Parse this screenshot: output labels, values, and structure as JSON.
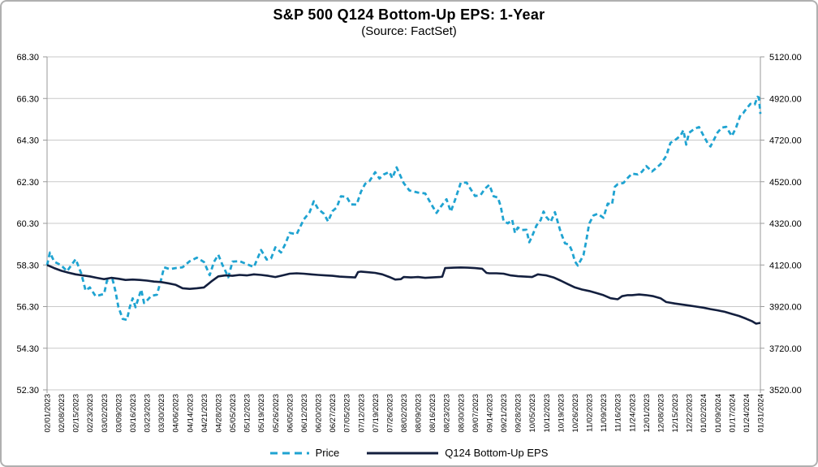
{
  "title": "S&P 500 Q124 Bottom-Up EPS: 1-Year",
  "subtitle": "(Source: FactSet)",
  "legend": [
    {
      "label": "Price",
      "color": "#1fa3d1",
      "style": "dashed"
    },
    {
      "label": "Q124 Bottom-Up EPS",
      "color": "#131f3e",
      "style": "solid"
    }
  ],
  "colors": {
    "price_line": "#1fa3d1",
    "eps_line": "#131f3e",
    "gridline": "#c9c9c9",
    "axis": "#9a9a9a",
    "text": "#000000"
  },
  "chart_data": {
    "type": "line",
    "title": "S&P 500 Q124 Bottom-Up EPS: 1-Year",
    "subtitle": "(Source: FactSet)",
    "grid": true,
    "legend_position": "bottom",
    "left_axis": {
      "min": 52.3,
      "max": 68.3,
      "step": 2.0,
      "ticks": [
        "68.30",
        "66.30",
        "64.30",
        "62.30",
        "60.30",
        "58.30",
        "56.30",
        "54.30",
        "52.30"
      ]
    },
    "right_axis": {
      "min": 3520.0,
      "max": 5120.0,
      "step": 200.0,
      "ticks": [
        "5120.00",
        "4920.00",
        "4720.00",
        "4520.00",
        "4320.00",
        "4120.00",
        "3920.00",
        "3720.00",
        "3520.00"
      ]
    },
    "x_labels": [
      "02/01/2023",
      "02/08/2023",
      "02/15/2023",
      "02/23/2023",
      "03/02/2023",
      "03/09/2023",
      "03/16/2023",
      "03/23/2023",
      "03/30/2023",
      "04/06/2023",
      "04/14/2023",
      "04/21/2023",
      "04/28/2023",
      "05/05/2023",
      "05/12/2023",
      "05/19/2023",
      "05/26/2023",
      "06/05/2023",
      "06/12/2023",
      "06/20/2023",
      "06/27/2023",
      "07/05/2023",
      "07/12/2023",
      "07/19/2023",
      "07/26/2023",
      "08/02/2023",
      "08/09/2023",
      "08/16/2023",
      "08/23/2023",
      "08/30/2023",
      "09/07/2023",
      "09/14/2023",
      "09/21/2023",
      "09/28/2023",
      "10/05/2023",
      "10/12/2023",
      "10/19/2023",
      "10/26/2023",
      "11/02/2023",
      "11/09/2023",
      "11/16/2023",
      "11/24/2023",
      "12/01/2023",
      "12/08/2023",
      "12/15/2023",
      "12/22/2023",
      "01/02/2024",
      "01/09/2024",
      "01/17/2024",
      "01/24/2024",
      "01/31/2024"
    ],
    "series": [
      {
        "name": "Price",
        "axis": "right",
        "color": "#1fa3d1",
        "dash": true,
        "points": [
          [
            0,
            4119
          ],
          [
            0.2,
            4180
          ],
          [
            0.5,
            4136
          ],
          [
            1,
            4118
          ],
          [
            1.4,
            4090
          ],
          [
            2,
            4148
          ],
          [
            2.4,
            4079
          ],
          [
            2.7,
            3997
          ],
          [
            3,
            4012
          ],
          [
            3.4,
            3970
          ],
          [
            4,
            3981
          ],
          [
            4.2,
            4045
          ],
          [
            4.6,
            4048
          ],
          [
            4.8,
            3992
          ],
          [
            5,
            3918
          ],
          [
            5.3,
            3861
          ],
          [
            5.6,
            3856
          ],
          [
            5.8,
            3919
          ],
          [
            6,
            3960
          ],
          [
            6.2,
            3917
          ],
          [
            6.6,
            4002
          ],
          [
            6.8,
            3937
          ],
          [
            7,
            3949
          ],
          [
            7.3,
            3971
          ],
          [
            7.7,
            3977
          ],
          [
            8,
            4051
          ],
          [
            8.2,
            4109
          ],
          [
            8.6,
            4100
          ],
          [
            9,
            4105
          ],
          [
            9.5,
            4109
          ],
          [
            10,
            4138
          ],
          [
            10.5,
            4155
          ],
          [
            11,
            4134
          ],
          [
            11.4,
            4071
          ],
          [
            11.7,
            4135
          ],
          [
            12,
            4169
          ],
          [
            12.3,
            4120
          ],
          [
            12.5,
            4091
          ],
          [
            12.7,
            4061
          ],
          [
            13,
            4136
          ],
          [
            13.5,
            4138
          ],
          [
            14,
            4124
          ],
          [
            14.5,
            4110
          ],
          [
            15,
            4192
          ],
          [
            15.4,
            4146
          ],
          [
            15.7,
            4151
          ],
          [
            16,
            4205
          ],
          [
            16.4,
            4180
          ],
          [
            16.7,
            4221
          ],
          [
            17,
            4274
          ],
          [
            17.5,
            4268
          ],
          [
            18,
            4339
          ],
          [
            18.4,
            4373
          ],
          [
            18.7,
            4426
          ],
          [
            19,
            4389
          ],
          [
            19.4,
            4366
          ],
          [
            19.7,
            4329
          ],
          [
            20,
            4378
          ],
          [
            20.3,
            4396
          ],
          [
            20.6,
            4450
          ],
          [
            21,
            4447
          ],
          [
            21.3,
            4411
          ],
          [
            21.7,
            4410
          ],
          [
            22,
            4472
          ],
          [
            22.3,
            4510
          ],
          [
            22.6,
            4523
          ],
          [
            23,
            4566
          ],
          [
            23.3,
            4535
          ],
          [
            23.6,
            4555
          ],
          [
            24,
            4567
          ],
          [
            24.2,
            4537
          ],
          [
            24.5,
            4589
          ],
          [
            25,
            4513
          ],
          [
            25.4,
            4478
          ],
          [
            26,
            4468
          ],
          [
            26.5,
            4464
          ],
          [
            27,
            4404
          ],
          [
            27.3,
            4370
          ],
          [
            27.6,
            4400
          ],
          [
            28,
            4436
          ],
          [
            28.3,
            4376
          ],
          [
            28.6,
            4433
          ],
          [
            29,
            4515
          ],
          [
            29.4,
            4516
          ],
          [
            30,
            4451
          ],
          [
            30.4,
            4457
          ],
          [
            30.7,
            4487
          ],
          [
            31,
            4505
          ],
          [
            31.3,
            4450
          ],
          [
            31.6,
            4444
          ],
          [
            31.8,
            4402
          ],
          [
            32,
            4330
          ],
          [
            32.3,
            4320
          ],
          [
            32.6,
            4337
          ],
          [
            32.8,
            4274
          ],
          [
            33,
            4300
          ],
          [
            33.3,
            4288
          ],
          [
            33.6,
            4289
          ],
          [
            33.8,
            4229
          ],
          [
            34,
            4258
          ],
          [
            34.3,
            4309
          ],
          [
            34.6,
            4336
          ],
          [
            34.8,
            4377
          ],
          [
            35,
            4350
          ],
          [
            35.3,
            4327
          ],
          [
            35.6,
            4374
          ],
          [
            36,
            4278
          ],
          [
            36.3,
            4224
          ],
          [
            36.6,
            4217
          ],
          [
            36.8,
            4187
          ],
          [
            37,
            4137
          ],
          [
            37.2,
            4117
          ],
          [
            37.6,
            4167
          ],
          [
            37.8,
            4238
          ],
          [
            38,
            4318
          ],
          [
            38.3,
            4358
          ],
          [
            38.6,
            4366
          ],
          [
            39,
            4347
          ],
          [
            39.3,
            4415
          ],
          [
            39.6,
            4411
          ],
          [
            39.8,
            4496
          ],
          [
            40,
            4508
          ],
          [
            40.4,
            4514
          ],
          [
            40.7,
            4538
          ],
          [
            41,
            4559
          ],
          [
            41.4,
            4555
          ],
          [
            41.7,
            4568
          ],
          [
            42,
            4595
          ],
          [
            42.4,
            4569
          ],
          [
            42.7,
            4586
          ],
          [
            43,
            4604
          ],
          [
            43.4,
            4644
          ],
          [
            43.7,
            4707
          ],
          [
            44,
            4719
          ],
          [
            44.4,
            4741
          ],
          [
            44.6,
            4768
          ],
          [
            44.8,
            4698
          ],
          [
            45,
            4755
          ],
          [
            45.4,
            4775
          ],
          [
            45.7,
            4783
          ],
          [
            46,
            4743
          ],
          [
            46.3,
            4705
          ],
          [
            46.5,
            4689
          ],
          [
            47,
            4757
          ],
          [
            47.3,
            4780
          ],
          [
            47.6,
            4784
          ],
          [
            48,
            4739
          ],
          [
            48.3,
            4781
          ],
          [
            48.6,
            4840
          ],
          [
            48.8,
            4850
          ],
          [
            49,
            4869
          ],
          [
            49.3,
            4894
          ],
          [
            49.6,
            4891
          ],
          [
            49.8,
            4928
          ],
          [
            49.9,
            4925
          ],
          [
            50,
            4846
          ]
        ]
      },
      {
        "name": "Q124 Bottom-Up EPS",
        "axis": "left",
        "color": "#131f3e",
        "dash": false,
        "points": [
          [
            0,
            58.3
          ],
          [
            0.5,
            58.15
          ],
          [
            1,
            58.02
          ],
          [
            1.5,
            57.93
          ],
          [
            2,
            57.85
          ],
          [
            2.5,
            57.8
          ],
          [
            3,
            57.75
          ],
          [
            3.5,
            57.68
          ],
          [
            4,
            57.62
          ],
          [
            4.5,
            57.68
          ],
          [
            5,
            57.64
          ],
          [
            5.5,
            57.58
          ],
          [
            6,
            57.6
          ],
          [
            6.5,
            57.58
          ],
          [
            7,
            57.55
          ],
          [
            7.5,
            57.5
          ],
          [
            8,
            57.48
          ],
          [
            8.5,
            57.42
          ],
          [
            9,
            57.35
          ],
          [
            9.5,
            57.18
          ],
          [
            10,
            57.15
          ],
          [
            10.5,
            57.18
          ],
          [
            11,
            57.22
          ],
          [
            11.5,
            57.5
          ],
          [
            12,
            57.75
          ],
          [
            12.5,
            57.8
          ],
          [
            13,
            57.78
          ],
          [
            13.5,
            57.82
          ],
          [
            14,
            57.8
          ],
          [
            14.5,
            57.85
          ],
          [
            15,
            57.82
          ],
          [
            15.5,
            57.78
          ],
          [
            16,
            57.72
          ],
          [
            16.5,
            57.8
          ],
          [
            17,
            57.88
          ],
          [
            17.5,
            57.9
          ],
          [
            18,
            57.88
          ],
          [
            18.5,
            57.85
          ],
          [
            19,
            57.82
          ],
          [
            19.5,
            57.8
          ],
          [
            20,
            57.78
          ],
          [
            20.5,
            57.74
          ],
          [
            21,
            57.72
          ],
          [
            21.6,
            57.7
          ],
          [
            21.8,
            57.96
          ],
          [
            22,
            57.98
          ],
          [
            22.5,
            57.95
          ],
          [
            23,
            57.92
          ],
          [
            23.5,
            57.85
          ],
          [
            24,
            57.72
          ],
          [
            24.4,
            57.6
          ],
          [
            24.8,
            57.62
          ],
          [
            25,
            57.72
          ],
          [
            25.5,
            57.7
          ],
          [
            26,
            57.72
          ],
          [
            26.5,
            57.68
          ],
          [
            27,
            57.7
          ],
          [
            27.5,
            57.72
          ],
          [
            27.7,
            57.74
          ],
          [
            27.9,
            58.15
          ],
          [
            28.5,
            58.17
          ],
          [
            29,
            58.18
          ],
          [
            29.5,
            58.17
          ],
          [
            30,
            58.15
          ],
          [
            30.5,
            58.12
          ],
          [
            30.8,
            57.92
          ],
          [
            31,
            57.9
          ],
          [
            31.5,
            57.9
          ],
          [
            32,
            57.88
          ],
          [
            32.5,
            57.8
          ],
          [
            33,
            57.76
          ],
          [
            33.5,
            57.74
          ],
          [
            34,
            57.72
          ],
          [
            34.4,
            57.85
          ],
          [
            34.7,
            57.82
          ],
          [
            35,
            57.8
          ],
          [
            35.5,
            57.7
          ],
          [
            36,
            57.55
          ],
          [
            36.5,
            57.38
          ],
          [
            37,
            57.22
          ],
          [
            37.5,
            57.12
          ],
          [
            38,
            57.05
          ],
          [
            38.5,
            56.95
          ],
          [
            39,
            56.85
          ],
          [
            39.5,
            56.7
          ],
          [
            40,
            56.65
          ],
          [
            40.3,
            56.8
          ],
          [
            40.7,
            56.85
          ],
          [
            41,
            56.85
          ],
          [
            41.5,
            56.88
          ],
          [
            42,
            56.85
          ],
          [
            42.5,
            56.8
          ],
          [
            43,
            56.7
          ],
          [
            43.4,
            56.52
          ],
          [
            44,
            56.45
          ],
          [
            44.5,
            56.4
          ],
          [
            45,
            56.35
          ],
          [
            45.5,
            56.3
          ],
          [
            46,
            56.25
          ],
          [
            46.5,
            56.18
          ],
          [
            47,
            56.12
          ],
          [
            47.5,
            56.05
          ],
          [
            48,
            55.95
          ],
          [
            48.5,
            55.85
          ],
          [
            49,
            55.72
          ],
          [
            49.4,
            55.6
          ],
          [
            49.7,
            55.48
          ],
          [
            50,
            55.52
          ]
        ]
      }
    ]
  }
}
